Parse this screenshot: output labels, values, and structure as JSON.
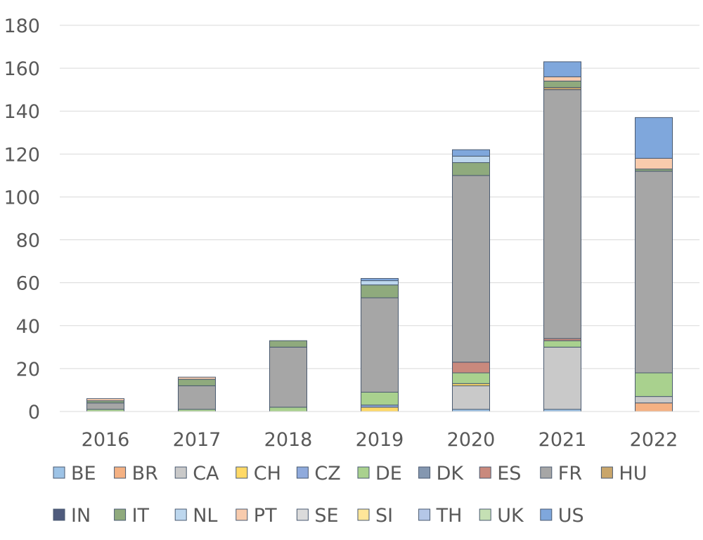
{
  "chart_data": {
    "type": "bar",
    "stacked": true,
    "title": "",
    "xlabel": "",
    "ylabel": "",
    "categories": [
      "2016",
      "2017",
      "2018",
      "2019",
      "2020",
      "2021",
      "2022"
    ],
    "ylim": [
      0,
      180
    ],
    "yticks": [
      0,
      20,
      40,
      60,
      80,
      100,
      120,
      140,
      160,
      180
    ],
    "grid": true,
    "legend_position": "bottom",
    "series": [
      {
        "name": "BE",
        "color": "#9dc3e6",
        "values": [
          0,
          0,
          0,
          0,
          1,
          1,
          0
        ]
      },
      {
        "name": "BR",
        "color": "#f4b183",
        "values": [
          0,
          0,
          0,
          0,
          0,
          0,
          4
        ]
      },
      {
        "name": "CA",
        "color": "#c9c9c9",
        "values": [
          0,
          0,
          0,
          0,
          11,
          29,
          3
        ]
      },
      {
        "name": "CH",
        "color": "#ffd966",
        "values": [
          0,
          0,
          0,
          2,
          1,
          0,
          0
        ]
      },
      {
        "name": "CZ",
        "color": "#8faadc",
        "values": [
          0,
          0,
          0,
          1,
          0,
          0,
          0
        ]
      },
      {
        "name": "DE",
        "color": "#a9d18e",
        "values": [
          1,
          1,
          2,
          6,
          5,
          3,
          11
        ]
      },
      {
        "name": "DK",
        "color": "#8497b0",
        "values": [
          0,
          0,
          0,
          0,
          0,
          0,
          0
        ]
      },
      {
        "name": "ES",
        "color": "#c9897d",
        "values": [
          0,
          0,
          0,
          0,
          5,
          1,
          0
        ]
      },
      {
        "name": "FR",
        "color": "#a6a6a6",
        "values": [
          3,
          11,
          28,
          44,
          87,
          116,
          94
        ]
      },
      {
        "name": "HU",
        "color": "#c9a66b",
        "values": [
          0,
          0,
          0,
          0,
          0,
          1,
          0
        ]
      },
      {
        "name": "IN",
        "color": "#4f5b7d",
        "values": [
          0,
          0,
          0,
          0,
          0,
          0,
          0
        ]
      },
      {
        "name": "IT",
        "color": "#8faa7d",
        "values": [
          1,
          3,
          3,
          6,
          6,
          3,
          1
        ]
      },
      {
        "name": "NL",
        "color": "#bdd7ee",
        "values": [
          0,
          0,
          0,
          2,
          3,
          0,
          0
        ]
      },
      {
        "name": "PT",
        "color": "#f8cbad",
        "values": [
          1,
          1,
          0,
          0,
          0,
          2,
          5
        ]
      },
      {
        "name": "SE",
        "color": "#dbdbdb",
        "values": [
          0,
          0,
          0,
          0,
          0,
          0,
          0
        ]
      },
      {
        "name": "SI",
        "color": "#ffe699",
        "values": [
          0,
          0,
          0,
          0,
          0,
          0,
          0
        ]
      },
      {
        "name": "TH",
        "color": "#b4c7e7",
        "values": [
          0,
          0,
          0,
          0,
          0,
          0,
          0
        ]
      },
      {
        "name": "UK",
        "color": "#c5e0b4",
        "values": [
          0,
          0,
          0,
          0,
          0,
          0,
          0
        ]
      },
      {
        "name": "US",
        "color": "#7fa7dc",
        "values": [
          0,
          0,
          0,
          1,
          3,
          7,
          19
        ]
      }
    ]
  }
}
